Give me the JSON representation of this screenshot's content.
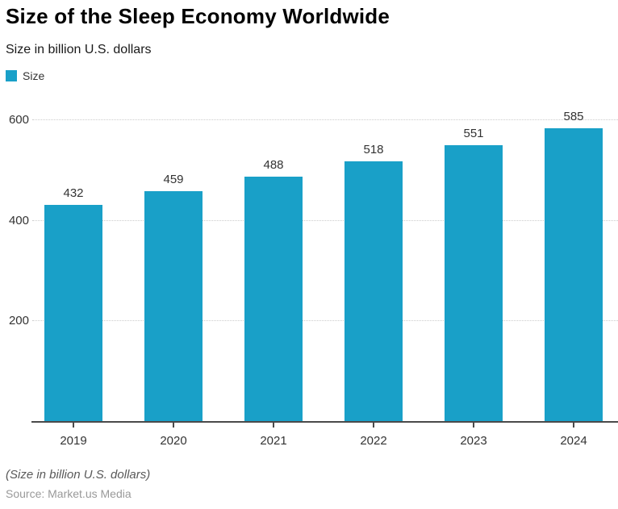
{
  "header": {
    "title": "Size of the Sleep Economy Worldwide",
    "subtitle": "Size in billion U.S. dollars"
  },
  "legend": {
    "items": [
      {
        "label": "Size",
        "color": "#19A0C8"
      }
    ]
  },
  "chart_data": {
    "type": "bar",
    "title": "Size of the Sleep Economy Worldwide",
    "subtitle": "Size in billion U.S. dollars",
    "categories": [
      "2019",
      "2020",
      "2021",
      "2022",
      "2023",
      "2024"
    ],
    "series": [
      {
        "name": "Size",
        "values": [
          432,
          459,
          488,
          518,
          551,
          585
        ]
      }
    ],
    "xlabel": "",
    "ylabel": "",
    "ylim": [
      0,
      630
    ],
    "yticks": [
      200,
      400,
      600
    ],
    "grid": true,
    "gridline_style": "dotted",
    "legend_position": "top-left",
    "bar_color": "#19A0C8",
    "axis_color": "#4a4a4a",
    "gridline_color": "#cccccc"
  },
  "footer": {
    "note": "(Size in billion U.S. dollars)",
    "source": "Source: Market.us Media"
  }
}
